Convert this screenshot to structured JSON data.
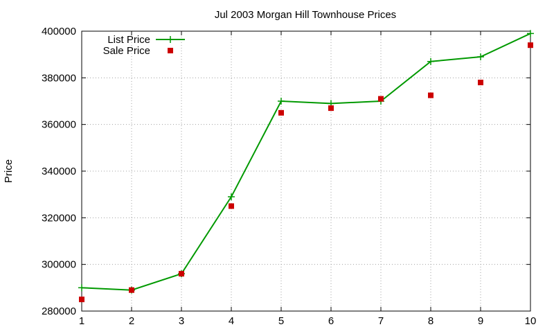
{
  "chart_data": {
    "type": "line",
    "title": "Jul 2003 Morgan Hill Townhouse Prices",
    "xlabel": "",
    "ylabel": "Price",
    "x": [
      1,
      2,
      3,
      4,
      5,
      6,
      7,
      8,
      9,
      10
    ],
    "xlim": [
      1,
      10
    ],
    "ylim": [
      280000,
      400000
    ],
    "xticks": [
      "1",
      "2",
      "3",
      "4",
      "5",
      "6",
      "7",
      "8",
      "9",
      "10"
    ],
    "yticks": [
      "280000",
      "300000",
      "320000",
      "340000",
      "360000",
      "380000",
      "400000"
    ],
    "grid": true,
    "legend_position": "top-left",
    "series": [
      {
        "name": "List Price",
        "style": "line-with-plus-markers",
        "color": "#009900",
        "values": [
          290000,
          289000,
          296000,
          329000,
          370000,
          369000,
          370000,
          387000,
          389000,
          399000
        ]
      },
      {
        "name": "Sale Price",
        "style": "square-points",
        "color": "#cc0000",
        "values": [
          285000,
          289000,
          296000,
          325000,
          365000,
          367000,
          371000,
          372500,
          378000,
          394000
        ]
      }
    ]
  }
}
